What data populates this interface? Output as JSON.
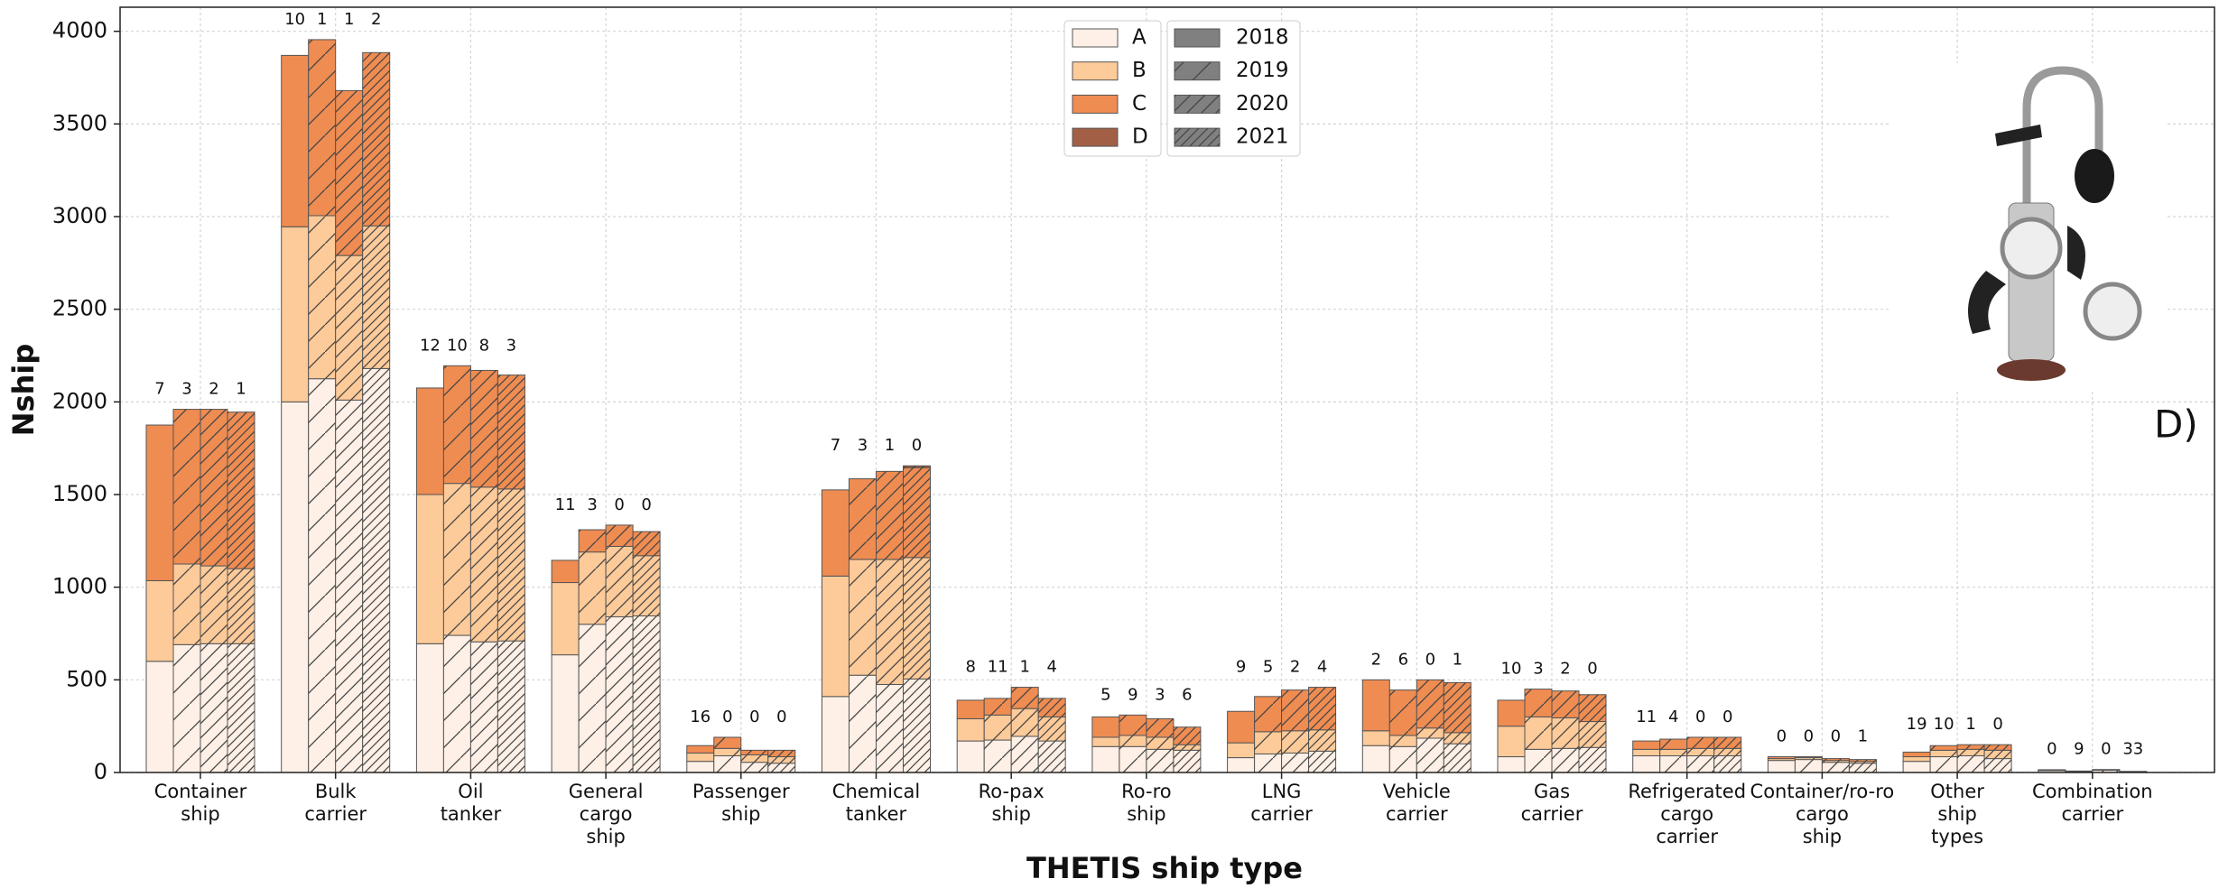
{
  "chart_data": {
    "type": "stacked_grouped_bar",
    "xlabel": "THETIS ship type",
    "ylabel": "Nship",
    "panel_label": "D)",
    "categories": [
      "Container ship",
      "Bulk carrier",
      "Oil tanker",
      "General cargo ship",
      "Passenger ship",
      "Chemical tanker",
      "Ro-pax ship",
      "Ro-ro ship",
      "LNG carrier",
      "Vehicle carrier",
      "Gas carrier",
      "Refrigerated cargo carrier",
      "Container/ro-ro cargo ship",
      "Other ship types",
      "Combination carrier"
    ],
    "years": [
      {
        "name": "2018",
        "hatch": "none"
      },
      {
        "name": "2019",
        "hatch": "/"
      },
      {
        "name": "2020",
        "hatch": "//"
      },
      {
        "name": "2021",
        "hatch": "///"
      }
    ],
    "series": [
      {
        "name": "A",
        "color": "#fef0e6",
        "values": [
          [
            600,
            690,
            695,
            695
          ],
          [
            2000,
            2125,
            2010,
            2180
          ],
          [
            695,
            740,
            705,
            710
          ],
          [
            635,
            800,
            840,
            845
          ],
          [
            60,
            90,
            55,
            50
          ],
          [
            410,
            525,
            475,
            505
          ],
          [
            170,
            175,
            195,
            170
          ],
          [
            140,
            140,
            125,
            120
          ],
          [
            80,
            100,
            105,
            115
          ],
          [
            145,
            140,
            185,
            155
          ],
          [
            85,
            125,
            130,
            135
          ],
          [
            90,
            90,
            90,
            90
          ],
          [
            65,
            70,
            55,
            50
          ],
          [
            60,
            85,
            90,
            75
          ],
          [
            10,
            5,
            12,
            4
          ]
        ]
      },
      {
        "name": "B",
        "color": "#fdca99",
        "values": [
          [
            435,
            435,
            420,
            405
          ],
          [
            945,
            880,
            780,
            770
          ],
          [
            805,
            820,
            835,
            820
          ],
          [
            390,
            390,
            380,
            325
          ],
          [
            45,
            40,
            40,
            35
          ],
          [
            650,
            625,
            675,
            655
          ],
          [
            120,
            135,
            150,
            130
          ],
          [
            50,
            60,
            65,
            30
          ],
          [
            80,
            120,
            120,
            115
          ],
          [
            80,
            60,
            55,
            60
          ],
          [
            165,
            175,
            165,
            140
          ],
          [
            35,
            35,
            40,
            40
          ],
          [
            10,
            10,
            10,
            10
          ],
          [
            25,
            35,
            35,
            45
          ],
          [
            2,
            1,
            2,
            1
          ]
        ]
      },
      {
        "name": "C",
        "color": "#ef8c52",
        "values": [
          [
            840,
            835,
            845,
            845
          ],
          [
            925,
            950,
            890,
            935
          ],
          [
            575,
            635,
            630,
            615
          ],
          [
            120,
            120,
            115,
            130
          ],
          [
            40,
            60,
            25,
            35
          ],
          [
            465,
            435,
            475,
            485
          ],
          [
            100,
            90,
            115,
            100
          ],
          [
            110,
            110,
            100,
            95
          ],
          [
            170,
            190,
            220,
            230
          ],
          [
            275,
            245,
            260,
            270
          ],
          [
            140,
            150,
            145,
            145
          ],
          [
            45,
            55,
            60,
            60
          ],
          [
            10,
            5,
            10,
            10
          ],
          [
            25,
            25,
            25,
            30
          ],
          [
            3,
            2,
            2,
            1
          ]
        ]
      },
      {
        "name": "D",
        "color": "#a35f45",
        "values": [
          [
            0,
            0,
            0,
            0
          ],
          [
            0,
            0,
            0,
            0
          ],
          [
            0,
            0,
            0,
            0
          ],
          [
            0,
            0,
            0,
            0
          ],
          [
            0,
            0,
            0,
            0
          ],
          [
            0,
            0,
            0,
            10
          ],
          [
            0,
            0,
            0,
            0
          ],
          [
            0,
            0,
            0,
            0
          ],
          [
            0,
            0,
            0,
            0
          ],
          [
            0,
            0,
            0,
            0
          ],
          [
            0,
            0,
            0,
            0
          ],
          [
            0,
            0,
            0,
            0
          ],
          [
            0,
            0,
            0,
            0
          ],
          [
            0,
            0,
            0,
            0
          ],
          [
            0,
            0,
            0,
            0
          ]
        ]
      }
    ],
    "top_labels": [
      [
        7,
        3,
        2,
        1
      ],
      [
        10,
        1,
        1,
        2
      ],
      [
        12,
        10,
        8,
        3
      ],
      [
        11,
        3,
        0,
        0
      ],
      [
        16,
        0,
        0,
        0
      ],
      [
        7,
        3,
        1,
        0
      ],
      [
        8,
        11,
        1,
        4
      ],
      [
        5,
        9,
        3,
        6
      ],
      [
        9,
        5,
        2,
        4
      ],
      [
        2,
        6,
        0,
        1
      ],
      [
        10,
        3,
        2,
        0
      ],
      [
        11,
        4,
        0,
        0
      ],
      [
        0,
        0,
        0,
        1
      ],
      [
        19,
        10,
        1,
        0
      ],
      [
        0,
        9,
        0,
        33
      ]
    ],
    "ylim": [
      0,
      4130
    ],
    "yticks": [
      0,
      500,
      1000,
      1500,
      2000,
      2500,
      3000,
      3500,
      4000
    ],
    "grid": true,
    "legend_position": "top-center"
  }
}
